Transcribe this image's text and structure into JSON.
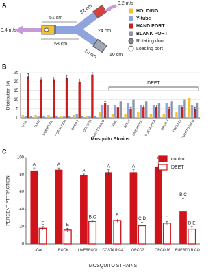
{
  "panel_a": {
    "label": "A",
    "flow_in": "0.2 m/s",
    "flow_out": "0.4 m/s",
    "dimensions": [
      "51 cm",
      "32 cm",
      "24 cm",
      "58 cm",
      "10 cm",
      "10 cm"
    ],
    "legend_extra": [
      "Rotating door",
      "Loading port"
    ]
  },
  "chart_data": [
    {
      "type": "bar",
      "panel_label": "B",
      "y_label": "Distribution (#)",
      "x_label": "Mosquito Strains",
      "annotation": "DEET",
      "categories": [
        "UGAL",
        "ROCK",
        "LIVERPOOL",
        "COSTA RICA",
        "ORCO 2",
        "ORCO 16",
        "PUERTO RICO",
        "UGAL",
        "ROCK",
        "LIVERPOOL",
        "COSTA RICA",
        "ORCO 2",
        "ORCO 16",
        "PUERTO RICO"
      ],
      "series": [
        {
          "name": "HOLDING",
          "color": "#f2c230",
          "values": [
            1.5,
            1.5,
            1.5,
            1,
            1.5,
            1,
            3,
            2,
            2,
            3,
            2,
            2,
            3,
            11
          ]
        },
        {
          "name": "Y-tube",
          "color": "#8fa3dc",
          "values": [
            1,
            1,
            0.5,
            1,
            2,
            1,
            7,
            7,
            8,
            7,
            7,
            8,
            7,
            7
          ]
        },
        {
          "name": "HAND PORT",
          "color": "#c8201e",
          "values": [
            23,
            21,
            21,
            22,
            20,
            24,
            8,
            6,
            5,
            6,
            6,
            5,
            6,
            5
          ],
          "errors": [
            1.5,
            1.5,
            1.5,
            1.5,
            1.5,
            1,
            1,
            1,
            1,
            1,
            1,
            1,
            1,
            1
          ]
        },
        {
          "name": "BLANK PORT",
          "color": "#8c96a8",
          "values": [
            1,
            1,
            1,
            1,
            1,
            1,
            7,
            9,
            10,
            9,
            8,
            9,
            10,
            8
          ]
        }
      ],
      "ylim": [
        0,
        25
      ],
      "yticks": [
        0,
        5,
        10,
        15,
        20,
        25
      ],
      "grid": true
    },
    {
      "type": "bar",
      "panel_label": "C",
      "y_label": "PERCENT ATTRACTION",
      "x_label": "MOSQUITO STRAINS",
      "legend": "top-right",
      "categories": [
        "UGAL",
        "ROCK",
        "LIVERPOOL",
        "COSTA RICA",
        "ORCO2",
        "ORCO 16",
        "PUERTO RICO"
      ],
      "series": [
        {
          "name": "control",
          "color": "#d0121b",
          "fill": true,
          "values": [
            85,
            86,
            80,
            83,
            83,
            89,
            38
          ],
          "errors": [
            3,
            2,
            1,
            3,
            3,
            6,
            15
          ],
          "value_labels": [
            "A",
            "A",
            "A",
            "A",
            "A",
            "A",
            "B,C"
          ]
        },
        {
          "name": "DEET",
          "color": "#d0121b",
          "fill": false,
          "values": [
            18,
            16,
            26,
            27,
            21,
            24,
            17
          ],
          "errors": [
            2,
            2,
            1,
            2,
            4,
            2,
            3
          ],
          "value_labels": [
            "E",
            "E",
            "B,C",
            "B",
            "C,D",
            "C",
            "D,E"
          ]
        }
      ],
      "ylim": [
        0,
        100
      ],
      "yticks": [
        0,
        20,
        40,
        60,
        80,
        100
      ],
      "grid": false
    }
  ]
}
